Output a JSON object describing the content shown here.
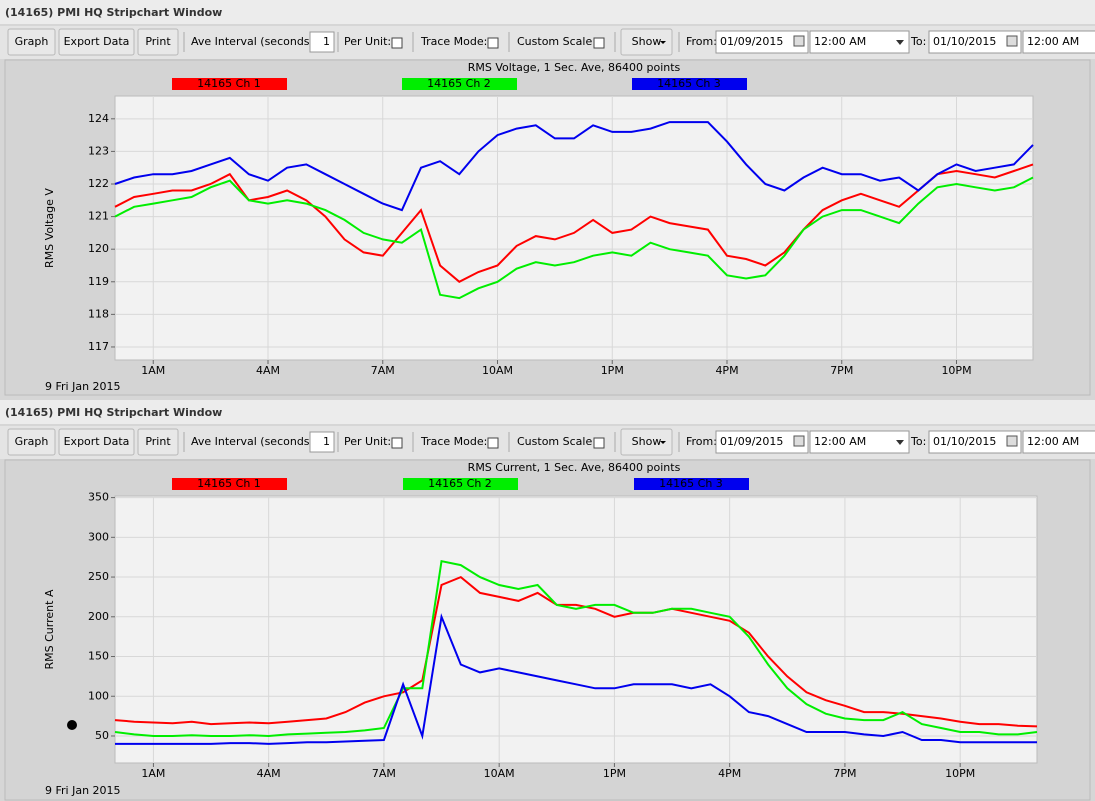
{
  "windows": [
    {
      "title": "(14165) PMI HQ Stripchart Window",
      "toolbar": {
        "buttons": [
          "Graph",
          "Export Data",
          "Print"
        ],
        "ave_interval_label": "Ave Interval (seconds)",
        "ave_interval_value": "1",
        "per_unit_label": "Per Unit:",
        "trace_mode_label": "Trace Mode:",
        "custom_scale_label": "Custom Scale:",
        "show_button": "Show",
        "from_label": "From:",
        "from_date": "01/09/2015",
        "from_time": "12:00 AM",
        "to_label": "To:",
        "to_date": "01/10/2015",
        "to_time": "12:00 AM"
      },
      "chart_data": {
        "type": "line",
        "title": "RMS Voltage, 1 Sec. Ave, 86400 points",
        "y_label": "RMS Voltage V",
        "date_label": "9 Fri Jan 2015",
        "grid": true,
        "xlim": [
          0,
          24
        ],
        "ylim": [
          116.6,
          124.7
        ],
        "xticks": [
          {
            "value": 1,
            "label": "1AM"
          },
          {
            "value": 4,
            "label": "4AM"
          },
          {
            "value": 7,
            "label": "7AM"
          },
          {
            "value": 10,
            "label": "10AM"
          },
          {
            "value": 13,
            "label": "1PM"
          },
          {
            "value": 16,
            "label": "4PM"
          },
          {
            "value": 19,
            "label": "7PM"
          },
          {
            "value": 22,
            "label": "10PM"
          }
        ],
        "yticks": [
          117,
          118,
          119,
          120,
          121,
          122,
          123,
          124
        ],
        "x": [
          0,
          0.5,
          1,
          1.5,
          2,
          2.5,
          3,
          3.5,
          4,
          4.5,
          5,
          5.5,
          6,
          6.5,
          7,
          7.5,
          8,
          8.5,
          9,
          9.5,
          10,
          10.5,
          11,
          11.5,
          12,
          12.5,
          13,
          13.5,
          14,
          14.5,
          15,
          15.5,
          16,
          16.5,
          17,
          17.5,
          18,
          18.5,
          19,
          19.5,
          20,
          20.5,
          21,
          21.5,
          22,
          22.5,
          23,
          23.5,
          24
        ],
        "series": [
          {
            "name": "14165 Ch 1",
            "color": "#ff0000",
            "values": [
              121.3,
              121.6,
              121.7,
              121.8,
              121.8,
              122,
              122.3,
              121.5,
              121.6,
              121.8,
              121.5,
              121,
              120.3,
              119.9,
              119.8,
              120.5,
              121.2,
              119.5,
              119,
              119.3,
              119.5,
              120.1,
              120.4,
              120.3,
              120.5,
              120.9,
              120.5,
              120.6,
              121,
              120.8,
              120.7,
              120.6,
              119.8,
              119.7,
              119.5,
              119.9,
              120.6,
              121.2,
              121.5,
              121.7,
              121.5,
              121.3,
              121.8,
              122.3,
              122.4,
              122.3,
              122.2,
              122.4,
              122.6
            ]
          },
          {
            "name": "14165 Ch 2",
            "color": "#00ee00",
            "values": [
              121,
              121.3,
              121.4,
              121.5,
              121.6,
              121.9,
              122.1,
              121.5,
              121.4,
              121.5,
              121.4,
              121.2,
              120.9,
              120.5,
              120.3,
              120.2,
              120.6,
              118.6,
              118.5,
              118.8,
              119,
              119.4,
              119.6,
              119.5,
              119.6,
              119.8,
              119.9,
              119.8,
              120.2,
              120,
              119.9,
              119.8,
              119.2,
              119.1,
              119.2,
              119.8,
              120.6,
              121,
              121.2,
              121.2,
              121,
              120.8,
              121.4,
              121.9,
              122,
              121.9,
              121.8,
              121.9,
              122.2
            ]
          },
          {
            "name": "14165 Ch 3",
            "color": "#0000ee",
            "values": [
              122,
              122.2,
              122.3,
              122.3,
              122.4,
              122.6,
              122.8,
              122.3,
              122.1,
              122.5,
              122.6,
              122.3,
              122,
              121.7,
              121.4,
              121.2,
              122.5,
              122.7,
              122.3,
              123,
              123.5,
              123.7,
              123.8,
              123.4,
              123.4,
              123.8,
              123.6,
              123.6,
              123.7,
              123.9,
              123.9,
              123.9,
              123.3,
              122.6,
              122,
              121.8,
              122.2,
              122.5,
              122.3,
              122.3,
              122.1,
              122.2,
              121.8,
              122.3,
              122.6,
              122.4,
              122.5,
              122.6,
              123.2
            ]
          }
        ]
      }
    },
    {
      "title": "(14165) PMI HQ Stripchart Window",
      "toolbar": {
        "buttons": [
          "Graph",
          "Export Data",
          "Print"
        ],
        "ave_interval_label": "Ave Interval (seconds)",
        "ave_interval_value": "1",
        "per_unit_label": "Per Unit:",
        "trace_mode_label": "Trace Mode:",
        "custom_scale_label": "Custom Scale:",
        "show_button": "Show",
        "from_label": "From:",
        "from_date": "01/09/2015",
        "from_time": "12:00 AM",
        "to_label": "To:",
        "to_date": "01/10/2015",
        "to_time": "12:00 AM"
      },
      "chart_data": {
        "type": "line",
        "title": "RMS Current, 1 Sec. Ave, 86400 points",
        "y_label": "RMS Current A",
        "date_label": "9 Fri Jan 2015",
        "grid": true,
        "xlim": [
          0,
          24
        ],
        "ylim": [
          16,
          352
        ],
        "xticks": [
          {
            "value": 1,
            "label": "1AM"
          },
          {
            "value": 4,
            "label": "4AM"
          },
          {
            "value": 7,
            "label": "7AM"
          },
          {
            "value": 10,
            "label": "10AM"
          },
          {
            "value": 13,
            "label": "1PM"
          },
          {
            "value": 16,
            "label": "4PM"
          },
          {
            "value": 19,
            "label": "7PM"
          },
          {
            "value": 22,
            "label": "10PM"
          }
        ],
        "yticks": [
          50,
          100,
          150,
          200,
          250,
          300,
          350
        ],
        "x": [
          0,
          0.5,
          1,
          1.5,
          2,
          2.5,
          3,
          3.5,
          4,
          4.5,
          5,
          5.5,
          6,
          6.5,
          7,
          7.5,
          8,
          8.5,
          9,
          9.5,
          10,
          10.5,
          11,
          11.5,
          12,
          12.5,
          13,
          13.5,
          14,
          14.5,
          15,
          15.5,
          16,
          16.5,
          17,
          17.5,
          18,
          18.5,
          19,
          19.5,
          20,
          20.5,
          21,
          21.5,
          22,
          22.5,
          23,
          23.5,
          24
        ],
        "series": [
          {
            "name": "14165 Ch 1",
            "color": "#ff0000",
            "values": [
              70,
              68,
              67,
              66,
              68,
              65,
              66,
              67,
              66,
              68,
              70,
              72,
              80,
              92,
              100,
              105,
              120,
              240,
              250,
              230,
              225,
              220,
              230,
              215,
              215,
              210,
              200,
              205,
              205,
              210,
              205,
              200,
              195,
              180,
              150,
              125,
              105,
              95,
              88,
              80,
              80,
              78,
              75,
              72,
              68,
              65,
              65,
              63,
              62
            ]
          },
          {
            "name": "14165 Ch 2",
            "color": "#00ee00",
            "values": [
              55,
              52,
              50,
              50,
              51,
              50,
              50,
              51,
              50,
              52,
              53,
              54,
              55,
              57,
              60,
              110,
              110,
              270,
              265,
              250,
              240,
              235,
              240,
              215,
              210,
              215,
              215,
              205,
              205,
              210,
              210,
              205,
              200,
              175,
              140,
              110,
              90,
              78,
              72,
              70,
              70,
              80,
              65,
              60,
              55,
              55,
              52,
              52,
              55
            ]
          },
          {
            "name": "14165 Ch 3",
            "color": "#0000ee",
            "values": [
              40,
              40,
              40,
              40,
              40,
              40,
              41,
              41,
              40,
              41,
              42,
              42,
              43,
              44,
              45,
              115,
              50,
              200,
              140,
              130,
              135,
              130,
              125,
              120,
              115,
              110,
              110,
              115,
              115,
              115,
              110,
              115,
              100,
              80,
              75,
              65,
              55,
              55,
              55,
              52,
              50,
              55,
              45,
              45,
              42,
              42,
              42,
              42,
              42
            ]
          }
        ]
      }
    }
  ]
}
